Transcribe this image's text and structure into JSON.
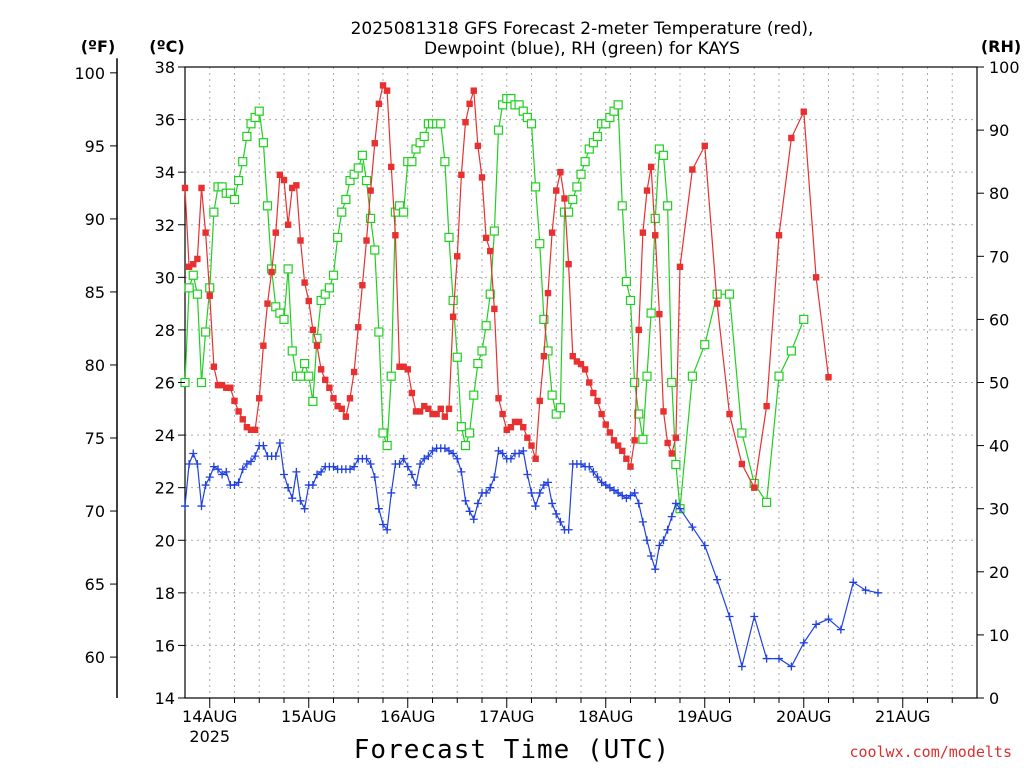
{
  "colors": {
    "temperature": "#e83030",
    "dewpoint": "#2040e0",
    "rh": "#20d020",
    "credit": "#d83030"
  },
  "chart_data": {
    "type": "line",
    "title_line1": "2025081318 GFS Forecast 2-meter Temperature (red),",
    "title_line2": "Dewpoint (blue), RH (green) for KAYS",
    "xlabel": "Forecast Time (UTC)",
    "credit": "coolwx.com/modelts",
    "left_unit_f": "(ºF)",
    "left_unit_c": "(ºC)",
    "right_unit": "(RH)",
    "grid": true,
    "x_range_hours_from_14AUG00": [
      -6,
      186
    ],
    "y_celsius_range": [
      14,
      38
    ],
    "y_rh_range": [
      0,
      100
    ],
    "x_ticks": [
      {
        "label": "14AUG",
        "sublabel": "2025",
        "hour": 0
      },
      {
        "label": "15AUG",
        "hour": 24
      },
      {
        "label": "16AUG",
        "hour": 48
      },
      {
        "label": "17AUG",
        "hour": 72
      },
      {
        "label": "18AUG",
        "hour": 96
      },
      {
        "label": "19AUG",
        "hour": 120
      },
      {
        "label": "20AUG",
        "hour": 144
      },
      {
        "label": "21AUG",
        "hour": 168
      }
    ],
    "y_ticks_celsius": [
      14,
      16,
      18,
      20,
      22,
      24,
      26,
      28,
      30,
      32,
      34,
      36,
      38
    ],
    "y_ticks_fahrenheit": [
      60,
      65,
      70,
      75,
      80,
      85,
      90,
      95,
      100
    ],
    "y_ticks_rh": [
      0,
      10,
      20,
      30,
      40,
      50,
      60,
      70,
      80,
      90,
      100
    ],
    "hourly_step_until_hour": 114,
    "step_after": 3,
    "series": [
      {
        "name": "2-meter Temperature",
        "unit": "C",
        "marker": "filled-square",
        "start_hour": -6,
        "values": [
          33.4,
          30.4,
          30.5,
          30.7,
          33.4,
          31.7,
          29.3,
          26.6,
          25.9,
          25.9,
          25.8,
          25.8,
          25.3,
          24.9,
          24.6,
          24.3,
          24.2,
          24.2,
          25.4,
          27.4,
          29.0,
          30.2,
          31.7,
          33.9,
          33.7,
          32.0,
          33.4,
          33.5,
          31.4,
          29.8,
          29.1,
          28.0,
          27.4,
          26.5,
          26.1,
          25.8,
          25.4,
          25.1,
          25.0,
          24.7,
          25.4,
          26.4,
          28.1,
          29.7,
          31.4,
          33.3,
          35.1,
          36.6,
          37.3,
          37.1,
          34.2,
          31.6,
          26.6,
          26.6,
          26.5,
          25.6,
          24.9,
          24.9,
          25.1,
          25.0,
          24.8,
          24.8,
          25.0,
          24.7,
          25.0,
          28.5,
          30.8,
          33.9,
          35.9,
          36.6,
          37.1,
          35.0,
          33.8,
          31.5,
          31.0,
          28.8,
          25.4,
          24.8,
          24.2,
          24.3,
          24.5,
          24.5,
          24.3,
          23.9,
          23.6,
          23.1,
          25.3,
          27.0,
          29.4,
          31.7,
          33.3,
          34.0,
          33.0,
          30.5,
          27.0,
          26.8,
          26.7,
          26.5,
          26.0,
          25.6,
          25.3,
          24.8,
          24.4,
          24.1,
          23.8,
          23.6,
          23.4,
          23.1,
          22.8,
          23.8,
          28.0,
          31.7,
          33.3,
          34.2,
          31.6,
          28.6,
          24.9,
          23.7,
          23.3,
          23.9,
          30.4,
          34.1,
          35.0,
          29.0,
          24.8,
          22.9,
          22.0,
          25.1,
          31.6,
          35.3,
          36.3,
          30.0,
          26.2
        ],
        "temp_indices": null
      },
      {
        "name": "Dewpoint",
        "unit": "C",
        "marker": "plus",
        "start_hour": -6,
        "values": [
          21.3,
          22.9,
          23.3,
          22.9,
          21.3,
          22.1,
          22.4,
          22.8,
          22.7,
          22.5,
          22.6,
          22.1,
          22.1,
          22.2,
          22.7,
          22.9,
          23.0,
          23.2,
          23.6,
          23.6,
          23.2,
          23.2,
          23.2,
          23.7,
          22.5,
          22.0,
          21.6,
          22.6,
          21.5,
          21.2,
          22.1,
          22.1,
          22.5,
          22.6,
          22.8,
          22.8,
          22.8,
          22.7,
          22.7,
          22.7,
          22.7,
          22.8,
          23.1,
          23.1,
          23.1,
          22.9,
          22.4,
          21.2,
          20.6,
          20.4,
          21.8,
          22.9,
          22.9,
          23.1,
          22.8,
          22.5,
          22.1,
          22.9,
          23.1,
          23.2,
          23.4,
          23.5,
          23.5,
          23.5,
          23.4,
          23.3,
          23.1,
          22.6,
          21.5,
          21.1,
          20.8,
          21.4,
          21.8,
          21.8,
          22.0,
          22.4,
          23.4,
          23.3,
          23.1,
          23.1,
          23.3,
          23.3,
          23.4,
          22.5,
          21.8,
          21.3,
          21.8,
          22.1,
          22.2,
          21.4,
          21.0,
          20.7,
          20.4,
          20.4,
          22.9,
          22.9,
          22.9,
          22.8,
          22.8,
          22.6,
          22.4,
          22.2,
          22.1,
          22.0,
          21.9,
          21.8,
          21.7,
          21.6,
          21.7,
          21.8,
          21.4,
          20.7,
          20.0,
          19.4,
          18.9,
          19.8,
          20.0,
          20.4,
          20.9,
          21.4,
          21.2,
          20.5,
          19.8,
          18.5,
          17.1,
          15.2,
          17.1,
          15.5,
          15.5,
          15.2,
          16.1,
          16.8,
          17.0,
          16.6,
          18.4,
          18.1,
          18.0
        ]
      },
      {
        "name": "RH",
        "unit": "%",
        "marker": "open-square",
        "start_hour": -6,
        "values": [
          50,
          65,
          67,
          64,
          50,
          58,
          65,
          77,
          81,
          81,
          80,
          80,
          79,
          82,
          85,
          89,
          91,
          92,
          93,
          88,
          78,
          68,
          62,
          61,
          60,
          68,
          55,
          51,
          51,
          53,
          51,
          47,
          57,
          63,
          64,
          65,
          67,
          73,
          77,
          79,
          82,
          83,
          84,
          86,
          82,
          76,
          71,
          58,
          42,
          40,
          51,
          77,
          78,
          77,
          85,
          85,
          87,
          88,
          89,
          91,
          91,
          91,
          91,
          85,
          73,
          63,
          54,
          43,
          40,
          42,
          48,
          53,
          55,
          59,
          64,
          74,
          90,
          94,
          95,
          95,
          94,
          94,
          93,
          92,
          91,
          81,
          72,
          60,
          55,
          48,
          45,
          46,
          77,
          77,
          79,
          81,
          83,
          85,
          87,
          88,
          89,
          91,
          91,
          92,
          93,
          94,
          78,
          66,
          63,
          50,
          45,
          41,
          51,
          61,
          76,
          87,
          86,
          78,
          50,
          37,
          30,
          51,
          56,
          64,
          64,
          42,
          34,
          31,
          51,
          55,
          60
        ]
      }
    ]
  }
}
